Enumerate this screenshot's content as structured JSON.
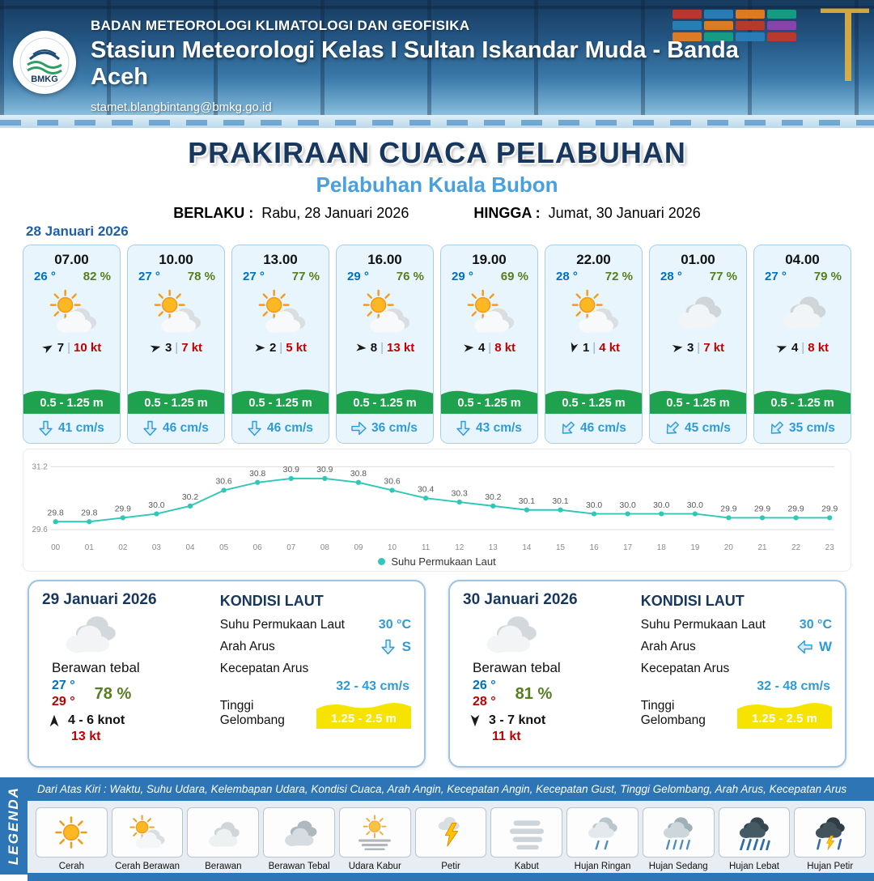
{
  "header": {
    "agency": "BADAN METEOROLOGI KLIMATOLOGI DAN GEOFISIKA",
    "station": "Stasiun Meteorologi Kelas I Sultan Iskandar Muda - Banda Aceh",
    "email": "stamet.blangbintang@bmkg.go.id",
    "logo_text": "BMKG"
  },
  "title": {
    "main": "PRAKIRAAN CUACA PELABUHAN",
    "sub": "Pelabuhan Kuala Bubon",
    "berlaku_label": "BERLAKU :",
    "berlaku_value": "Rabu, 28 Januari 2026",
    "hingga_label": "HINGGA :",
    "hingga_value": "Jumat, 30 Januari 2026"
  },
  "forecast": {
    "date": "28 Januari 2026",
    "wind_divider": "|",
    "cards": [
      {
        "time": "07.00",
        "temp": "26 °",
        "rh": "82 %",
        "icon": "sun-cloud",
        "wind_val": "7",
        "wind_kt": "10 kt",
        "wind_deg": -30,
        "wave": "0.5 - 1.25 m",
        "current": "41 cm/s",
        "cur_deg": 0
      },
      {
        "time": "10.00",
        "temp": "27 °",
        "rh": "78 %",
        "icon": "sun-cloud",
        "wind_val": "3",
        "wind_kt": "7 kt",
        "wind_deg": -15,
        "wave": "0.5 - 1.25 m",
        "current": "46 cm/s",
        "cur_deg": 0
      },
      {
        "time": "13.00",
        "temp": "27 °",
        "rh": "77 %",
        "icon": "sun-cloud",
        "wind_val": "2",
        "wind_kt": "5 kt",
        "wind_deg": 0,
        "wave": "0.5 - 1.25 m",
        "current": "46 cm/s",
        "cur_deg": 0
      },
      {
        "time": "16.00",
        "temp": "29 °",
        "rh": "76 %",
        "icon": "sun-cloud",
        "wind_val": "8",
        "wind_kt": "13 kt",
        "wind_deg": 5,
        "wave": "0.5 - 1.25 m",
        "current": "36 cm/s",
        "cur_deg": -90
      },
      {
        "time": "19.00",
        "temp": "29 °",
        "rh": "69 %",
        "icon": "sun-cloud",
        "wind_val": "4",
        "wind_kt": "8 kt",
        "wind_deg": -5,
        "wave": "0.5 - 1.25 m",
        "current": "43 cm/s",
        "cur_deg": 0
      },
      {
        "time": "22.00",
        "temp": "28 °",
        "rh": "72 %",
        "icon": "sun-cloud",
        "wind_val": "1",
        "wind_kt": "4 kt",
        "wind_deg": 105,
        "wave": "0.5 - 1.25 m",
        "current": "46 cm/s",
        "cur_deg": 45
      },
      {
        "time": "01.00",
        "temp": "28 °",
        "rh": "77 %",
        "icon": "cloud",
        "wind_val": "3",
        "wind_kt": "7 kt",
        "wind_deg": -10,
        "wave": "0.5 - 1.25 m",
        "current": "45 cm/s",
        "cur_deg": 45
      },
      {
        "time": "04.00",
        "temp": "27 °",
        "rh": "79 %",
        "icon": "cloud",
        "wind_val": "4",
        "wind_kt": "8 kt",
        "wind_deg": -20,
        "wave": "0.5 - 1.25 m",
        "current": "35 cm/s",
        "cur_deg": 45
      }
    ]
  },
  "chart_data": {
    "type": "line",
    "series_label": "Suhu Permukaan Laut",
    "x": [
      "00",
      "01",
      "02",
      "03",
      "04",
      "05",
      "06",
      "07",
      "08",
      "09",
      "10",
      "11",
      "12",
      "13",
      "14",
      "15",
      "16",
      "17",
      "18",
      "19",
      "20",
      "21",
      "22",
      "23"
    ],
    "values": [
      29.8,
      29.8,
      29.9,
      30.0,
      30.2,
      30.6,
      30.8,
      30.9,
      30.9,
      30.8,
      30.6,
      30.4,
      30.3,
      30.2,
      30.1,
      30.1,
      30.0,
      30.0,
      30.0,
      30.0,
      29.9,
      29.9,
      29.9,
      29.9
    ],
    "ylim": [
      29.6,
      31.2
    ],
    "y_ticks": [
      "31.2",
      "29.6"
    ],
    "line_color": "#2fc7b8",
    "grid": true,
    "legend_position": "bottom"
  },
  "sea_labels": {
    "title": "KONDISI LAUT",
    "sst": "Suhu Permukaan Laut",
    "arah": "Arah Arus",
    "kecepatan": "Kecepatan Arus",
    "gelombang": "Tinggi Gelombang"
  },
  "daily": [
    {
      "date": "29 Januari 2026",
      "condition": "Berawan tebal",
      "icon": "cloud",
      "temp_min": "27 °",
      "temp_max": "29 °",
      "rh": "78 %",
      "wind": "4 - 6 knot",
      "gust": "13 kt",
      "wind_deg": -90,
      "sst": "30 °C",
      "arus_dir": "S",
      "arus_deg": 0,
      "arus_speed": "32 - 43 cm/s",
      "wave": "1.25 - 2.5 m"
    },
    {
      "date": "30 Januari 2026",
      "condition": "Berawan tebal",
      "icon": "cloud",
      "temp_min": "26 °",
      "temp_max": "28 °",
      "rh": "81 %",
      "wind": "3 - 7 knot",
      "gust": "11 kt",
      "wind_deg": 90,
      "sst": "30 °C",
      "arus_dir": "W",
      "arus_deg": 90,
      "arus_speed": "32 - 48 cm/s",
      "wave": "1.25 - 2.5 m"
    }
  ],
  "legend": {
    "vertical_label": "LEGENDA",
    "info": "Dari Atas Kiri : Waktu, Suhu Udara, Kelembapan Udara, Kondisi Cuaca, Arah Angin, Kecepatan Angin, Kecepatan Gust, Tinggi Gelombang, Arah Arus, Kecepatan Arus",
    "items": [
      {
        "label": "Cerah",
        "icon": "sun"
      },
      {
        "label": "Cerah Berawan",
        "icon": "sun-cloud"
      },
      {
        "label": "Berawan",
        "icon": "cloud"
      },
      {
        "label": "Berawan Tebal",
        "icon": "clouds"
      },
      {
        "label": "Udara Kabur",
        "icon": "haze"
      },
      {
        "label": "Petir",
        "icon": "lightning"
      },
      {
        "label": "Kabut",
        "icon": "fog"
      },
      {
        "label": "Hujan Ringan",
        "icon": "rain-light"
      },
      {
        "label": "Hujan Sedang",
        "icon": "rain-moderate"
      },
      {
        "label": "Hujan Lebat",
        "icon": "rain-heavy"
      },
      {
        "label": "Hujan Petir",
        "icon": "thunderstorm"
      }
    ]
  },
  "colors": {
    "accent_blue": "#2e75b6",
    "temp_blue": "#0070c0",
    "humidity_green": "#567d1f",
    "speed_red": "#c00000",
    "wave_green": "#1fa24d",
    "wave_yellow": "#f6e400",
    "current_blue": "#2e9bd6",
    "chart_teal": "#2fc7b8"
  }
}
